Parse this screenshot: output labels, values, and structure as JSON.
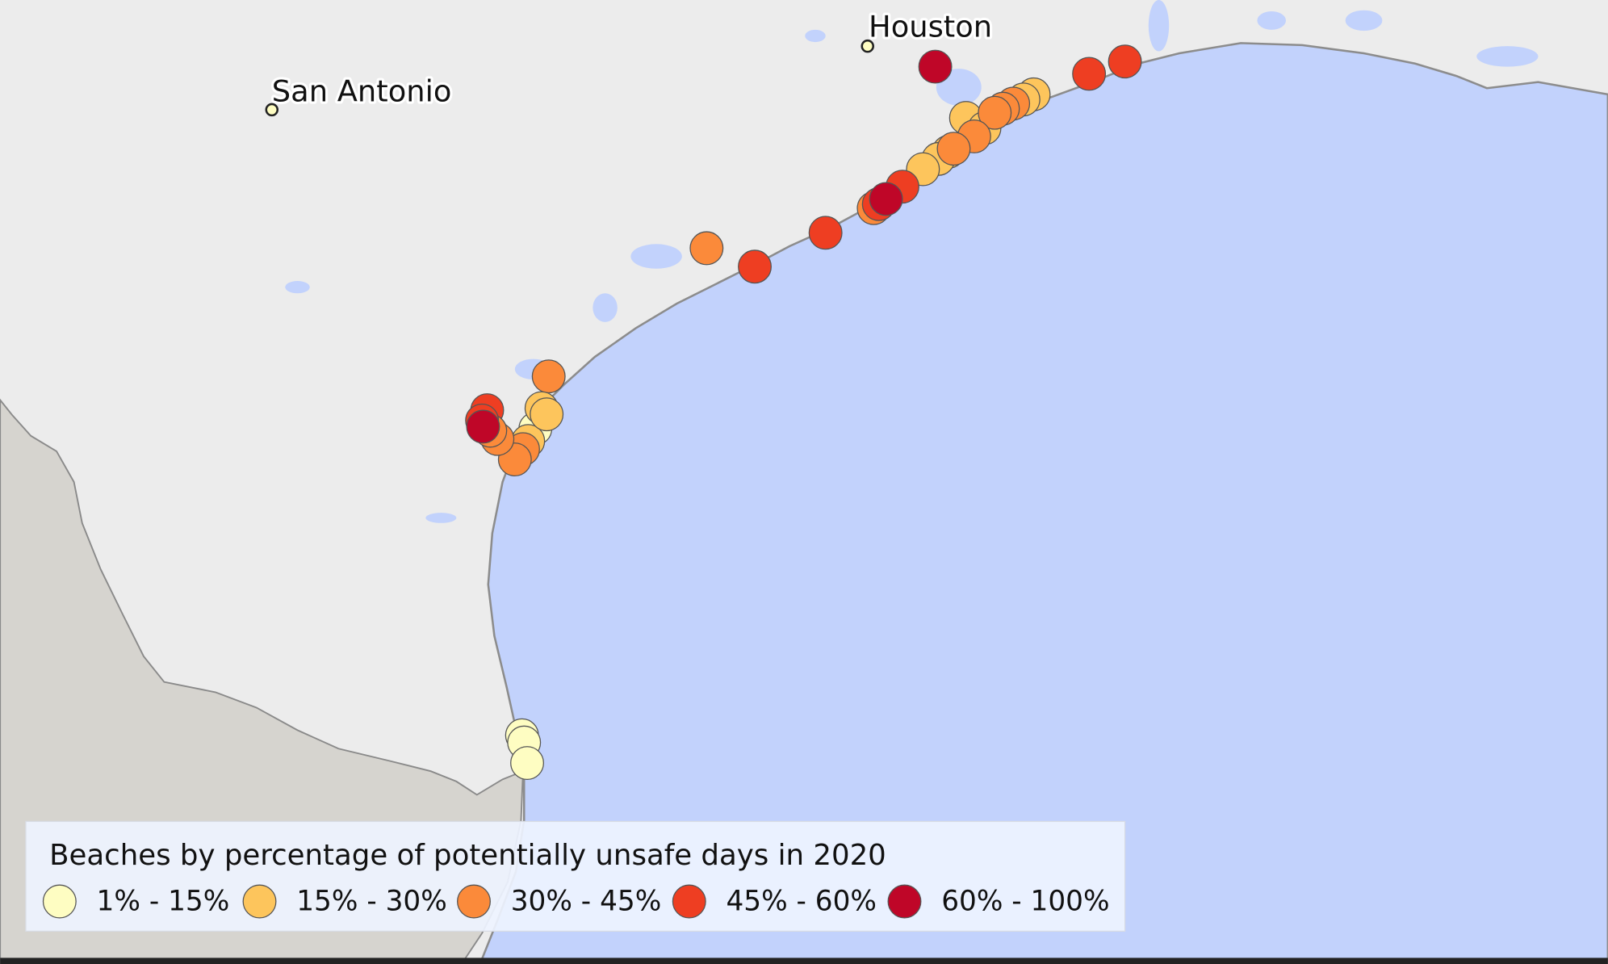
{
  "cities": [
    {
      "name": "San Antonio"
    },
    {
      "name": "Houston"
    }
  ],
  "legend": {
    "title": "Beaches by percentage of potentially unsafe days in 2020",
    "items": [
      {
        "label": "1% - 15%",
        "color": "#fefdc2"
      },
      {
        "label": "15% - 30%",
        "color": "#fdc55c"
      },
      {
        "label": "30% - 45%",
        "color": "#fb8a3a"
      },
      {
        "label": "45% - 60%",
        "color": "#ee3e22"
      },
      {
        "label": "60% - 100%",
        "color": "#bf0628"
      }
    ]
  }
}
